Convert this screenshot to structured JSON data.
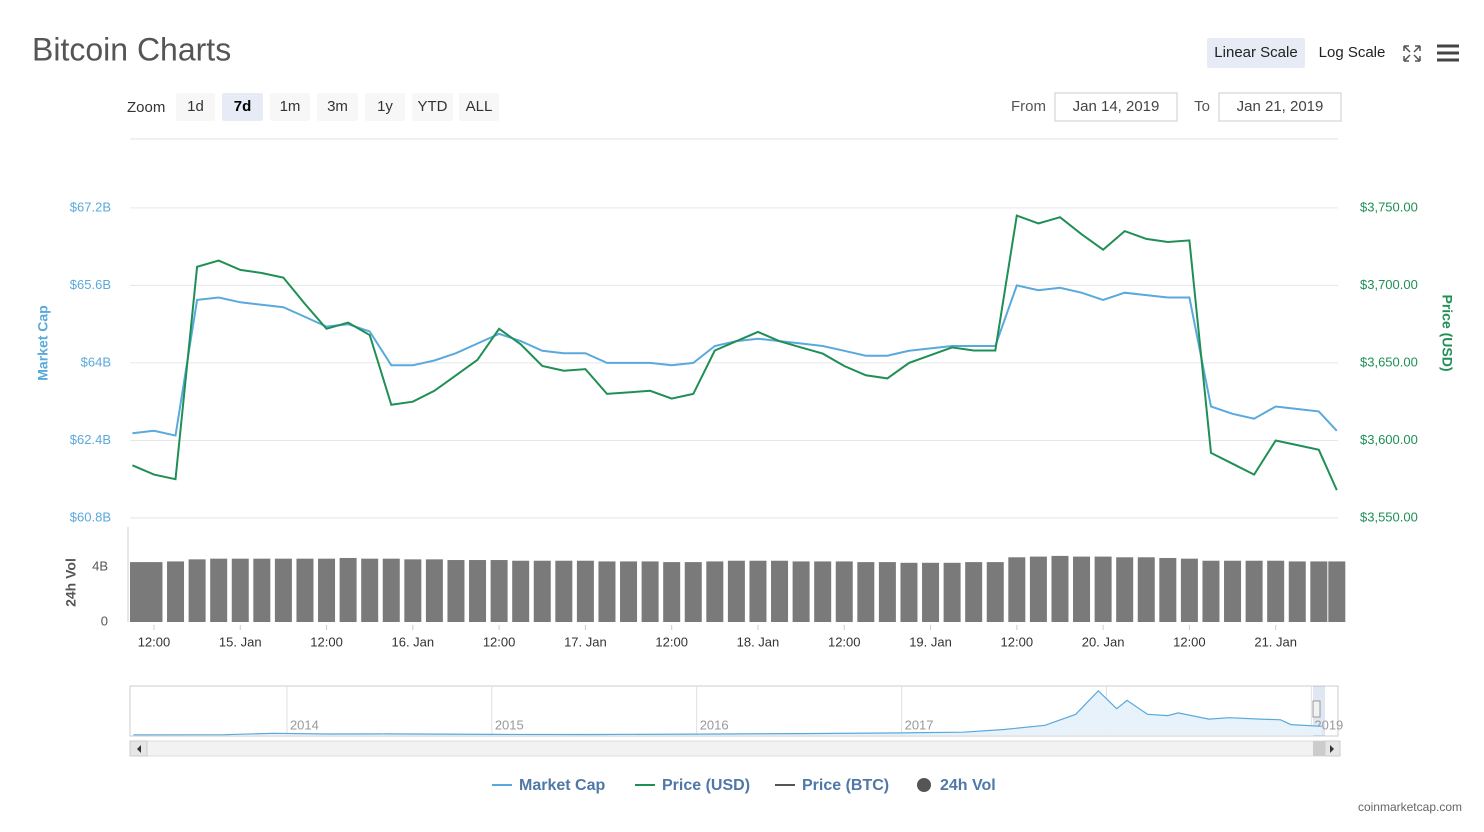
{
  "header": {
    "title": "Bitcoin Charts",
    "scale_buttons": [
      {
        "label": "Linear Scale",
        "active": true
      },
      {
        "label": "Log Scale",
        "active": false
      }
    ]
  },
  "zoom": {
    "label": "Zoom",
    "buttons": [
      {
        "label": "1d",
        "active": false
      },
      {
        "label": "7d",
        "active": true
      },
      {
        "label": "1m",
        "active": false
      },
      {
        "label": "3m",
        "active": false
      },
      {
        "label": "1y",
        "active": false
      },
      {
        "label": "YTD",
        "active": false
      },
      {
        "label": "ALL",
        "active": false
      }
    ]
  },
  "range": {
    "from_label": "From",
    "from": "Jan 14, 2019",
    "to_label": "To",
    "to": "Jan 21, 2019"
  },
  "chart_data": [
    {
      "type": "line",
      "x": [
        "14. Jan 09:00",
        "14. Jan 12:00",
        "14. Jan 15:00",
        "14. Jan 18:00",
        "14. Jan 21:00",
        "15. Jan 00:00",
        "15. Jan 03:00",
        "15. Jan 06:00",
        "15. Jan 09:00",
        "15. Jan 12:00",
        "15. Jan 15:00",
        "15. Jan 18:00",
        "15. Jan 21:00",
        "16. Jan 00:00",
        "16. Jan 03:00",
        "16. Jan 06:00",
        "16. Jan 09:00",
        "16. Jan 12:00",
        "16. Jan 15:00",
        "16. Jan 18:00",
        "16. Jan 21:00",
        "17. Jan 00:00",
        "17. Jan 03:00",
        "17. Jan 06:00",
        "17. Jan 09:00",
        "17. Jan 12:00",
        "17. Jan 15:00",
        "17. Jan 18:00",
        "17. Jan 21:00",
        "18. Jan 00:00",
        "18. Jan 03:00",
        "18. Jan 06:00",
        "18. Jan 09:00",
        "18. Jan 12:00",
        "18. Jan 15:00",
        "18. Jan 18:00",
        "18. Jan 21:00",
        "19. Jan 00:00",
        "19. Jan 03:00",
        "19. Jan 06:00",
        "19. Jan 09:00",
        "19. Jan 12:00",
        "19. Jan 15:00",
        "19. Jan 18:00",
        "19. Jan 21:00",
        "20. Jan 00:00",
        "20. Jan 03:00",
        "20. Jan 06:00",
        "20. Jan 09:00",
        "20. Jan 12:00",
        "20. Jan 15:00",
        "20. Jan 18:00",
        "20. Jan 21:00",
        "21. Jan 00:00",
        "21. Jan 03:00",
        "21. Jan 06:00",
        "21. Jan 08:30"
      ],
      "xlim": [
        "14. Jan 08:40",
        "21. Jan 08:40"
      ],
      "ylabel": "Market Cap",
      "y2label": "Price (USD)",
      "ylim": [
        60.8,
        68.6
      ],
      "yticks": [
        {
          "value": 60.8,
          "label": "$60.8B"
        },
        {
          "value": 62.4,
          "label": "$62.4B"
        },
        {
          "value": 64,
          "label": "$64B"
        },
        {
          "value": 65.6,
          "label": "$65.6B"
        },
        {
          "value": 67.2,
          "label": "$67.2B"
        }
      ],
      "y2lim": [
        3550,
        3793.75
      ],
      "y2ticks": [
        {
          "value": 3550,
          "label": "$3,550.00"
        },
        {
          "value": 3600,
          "label": "$3,600.00"
        },
        {
          "value": 3650,
          "label": "$3,650.00"
        },
        {
          "value": 3700,
          "label": "$3,700.00"
        },
        {
          "value": 3750,
          "label": "$3,750.00"
        }
      ],
      "grid": true,
      "series": [
        {
          "color": "#5aa9dc",
          "values": [
            62.55,
            62.6,
            62.5,
            65.3,
            65.35,
            65.25,
            65.2,
            65.15,
            64.95,
            64.75,
            64.8,
            64.65,
            63.95,
            63.95,
            64.05,
            64.2,
            64.4,
            64.6,
            64.45,
            64.25,
            64.2,
            64.2,
            64.0,
            64.0,
            64.0,
            63.95,
            64.0,
            64.35,
            64.45,
            64.5,
            64.45,
            64.4,
            64.35,
            64.25,
            64.15,
            64.15,
            64.25,
            64.3,
            64.35,
            64.35,
            64.35,
            65.6,
            65.5,
            65.55,
            65.45,
            65.3,
            65.45,
            65.4,
            65.35,
            65.35,
            63.1,
            62.95,
            62.85,
            63.1,
            63.05,
            63.0,
            62.6
          ]
        },
        {
          "color": "#1f8f55",
          "axis": "y2",
          "values": [
            3584,
            3578,
            3575,
            3712,
            3716,
            3710,
            3708,
            3705,
            3688,
            3672,
            3676,
            3668,
            3623,
            3625,
            3632,
            3642,
            3652,
            3672,
            3662,
            3648,
            3645,
            3646,
            3630,
            3631,
            3632,
            3627,
            3630,
            3658,
            3664,
            3670,
            3664,
            3660,
            3656,
            3648,
            3642,
            3640,
            3650,
            3655,
            3660,
            3658,
            3658,
            3745,
            3740,
            3744,
            3733,
            3723,
            3735,
            3730,
            3728,
            3729,
            3592,
            3585,
            3578,
            3600,
            3597,
            3594,
            3568
          ]
        }
      ]
    },
    {
      "type": "bar",
      "x": [
        "14. Jan 09:00",
        "14. Jan 12:00",
        "14. Jan 15:00",
        "14. Jan 18:00",
        "14. Jan 21:00",
        "15. Jan 00:00",
        "15. Jan 03:00",
        "15. Jan 06:00",
        "15. Jan 09:00",
        "15. Jan 12:00",
        "15. Jan 15:00",
        "15. Jan 18:00",
        "15. Jan 21:00",
        "16. Jan 00:00",
        "16. Jan 03:00",
        "16. Jan 06:00",
        "16. Jan 09:00",
        "16. Jan 12:00",
        "16. Jan 15:00",
        "16. Jan 18:00",
        "16. Jan 21:00",
        "17. Jan 00:00",
        "17. Jan 03:00",
        "17. Jan 06:00",
        "17. Jan 09:00",
        "17. Jan 12:00",
        "17. Jan 15:00",
        "17. Jan 18:00",
        "17. Jan 21:00",
        "18. Jan 00:00",
        "18. Jan 03:00",
        "18. Jan 06:00",
        "18. Jan 09:00",
        "18. Jan 12:00",
        "18. Jan 15:00",
        "18. Jan 18:00",
        "18. Jan 21:00",
        "19. Jan 00:00",
        "19. Jan 03:00",
        "19. Jan 06:00",
        "19. Jan 09:00",
        "19. Jan 12:00",
        "19. Jan 15:00",
        "19. Jan 18:00",
        "19. Jan 21:00",
        "20. Jan 00:00",
        "20. Jan 03:00",
        "20. Jan 06:00",
        "20. Jan 09:00",
        "20. Jan 12:00",
        "20. Jan 15:00",
        "20. Jan 18:00",
        "20. Jan 21:00",
        "21. Jan 00:00",
        "21. Jan 03:00",
        "21. Jan 06:00",
        "21. Jan 08:30"
      ],
      "xlim": [
        "14. Jan 08:40",
        "21. Jan 08:40"
      ],
      "ylabel": "24h Vol",
      "ylim": [
        0,
        6.9
      ],
      "yticks": [
        0,
        {
          "value": 4,
          "label": "4B"
        }
      ],
      "xticks": [
        {
          "value": "14. Jan 12:00",
          "label": "12:00"
        },
        {
          "value": "15. Jan 00:00",
          "label": "15. Jan"
        },
        {
          "value": "15. Jan 12:00",
          "label": "12:00"
        },
        {
          "value": "16. Jan 00:00",
          "label": "16. Jan"
        },
        {
          "value": "16. Jan 12:00",
          "label": "12:00"
        },
        {
          "value": "17. Jan 00:00",
          "label": "17. Jan"
        },
        {
          "value": "17. Jan 12:00",
          "label": "12:00"
        },
        {
          "value": "18. Jan 00:00",
          "label": "18. Jan"
        },
        {
          "value": "18. Jan 12:00",
          "label": "12:00"
        },
        {
          "value": "19. Jan 00:00",
          "label": "19. Jan"
        },
        {
          "value": "19. Jan 12:00",
          "label": "12:00"
        },
        {
          "value": "20. Jan 00:00",
          "label": "20. Jan"
        },
        {
          "value": "20. Jan 12:00",
          "label": "12:00"
        },
        {
          "value": "21. Jan 00:00",
          "label": "21. Jan"
        }
      ],
      "color": "#7a7a7a",
      "values": [
        4.35,
        4.35,
        4.4,
        4.55,
        4.6,
        4.6,
        4.6,
        4.6,
        4.6,
        4.6,
        4.65,
        4.6,
        4.6,
        4.55,
        4.55,
        4.5,
        4.5,
        4.5,
        4.45,
        4.45,
        4.45,
        4.45,
        4.4,
        4.4,
        4.4,
        4.35,
        4.35,
        4.4,
        4.45,
        4.45,
        4.45,
        4.4,
        4.4,
        4.4,
        4.35,
        4.35,
        4.3,
        4.3,
        4.3,
        4.35,
        4.35,
        4.7,
        4.75,
        4.8,
        4.75,
        4.75,
        4.7,
        4.7,
        4.65,
        4.6,
        4.45,
        4.45,
        4.45,
        4.45,
        4.4,
        4.4,
        4.4
      ]
    },
    {
      "type": "area",
      "x": [
        2013.25,
        2013.7,
        2013.93,
        2014.2,
        2014.5,
        2015.0,
        2015.5,
        2016.0,
        2016.5,
        2017.0,
        2017.3,
        2017.5,
        2017.7,
        2017.85,
        2017.96,
        2018.05,
        2018.1,
        2018.2,
        2018.3,
        2018.35,
        2018.5,
        2018.6,
        2018.75,
        2018.85,
        2018.9,
        2019.05
      ],
      "xlim": [
        2013.234,
        2019.13
      ],
      "ylim": [
        0,
        340
      ],
      "xticks": [
        2014,
        2015,
        2016,
        2017,
        2018,
        2019
      ],
      "color": "#5aa9dc",
      "values": [
        1.5,
        2,
        12,
        7,
        8,
        4,
        3.5,
        6.5,
        10,
        15,
        20,
        40,
        70,
        150,
        320,
        190,
        250,
        150,
        140,
        160,
        115,
        125,
        115,
        110,
        75,
        63
      ]
    }
  ],
  "legend": [
    {
      "name": "Market Cap",
      "color": "#5aa9dc",
      "symbol": "line"
    },
    {
      "name": "Price (USD)",
      "color": "#1f8f55",
      "symbol": "line"
    },
    {
      "name": "Price (BTC)",
      "color": "#555555",
      "symbol": "line"
    },
    {
      "name": "24h Vol",
      "color": "#555555",
      "symbol": "circle"
    }
  ],
  "footer": {
    "credit": "coinmarketcap.com"
  }
}
